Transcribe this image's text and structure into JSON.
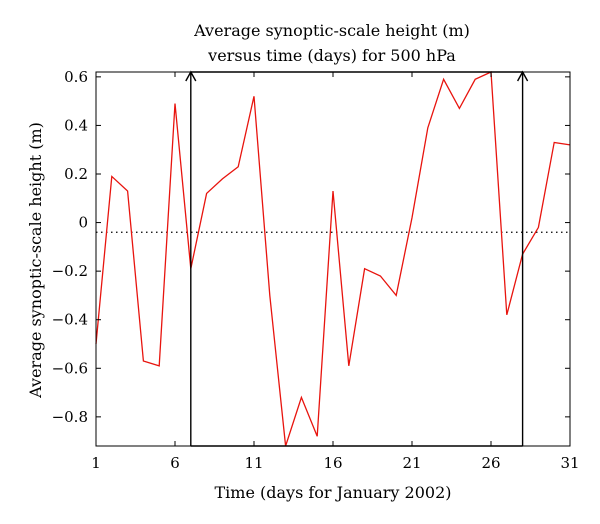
{
  "chart_data": {
    "type": "line",
    "title_lines": [
      "Average synoptic-scale height (m)",
      "versus time (days) for 500 hPa"
    ],
    "xlabel": "Time (days for January 2002)",
    "ylabel": "Average synoptic-scale height (m)",
    "xlim": [
      1,
      31
    ],
    "ylim": [
      -0.92,
      0.62
    ],
    "xticks": [
      1,
      6,
      11,
      16,
      21,
      26,
      31
    ],
    "yticks": [
      -0.8,
      -0.6,
      -0.4,
      -0.2,
      0,
      0.2,
      0.4,
      0.6
    ],
    "ytick_labels": [
      "−0.8",
      "−0.6",
      "−0.4",
      "−0.2",
      "0",
      "0.2",
      "0.4",
      "0.6"
    ],
    "grid": false,
    "series": [
      {
        "color": "#e8140e",
        "x": [
          1,
          2,
          3,
          4,
          5,
          6,
          7,
          8,
          9,
          10,
          11,
          12,
          13,
          14,
          15,
          16,
          17,
          18,
          19,
          20,
          21,
          22,
          23,
          24,
          25,
          26,
          27,
          28,
          29,
          30,
          31
        ],
        "y": [
          -0.5,
          0.19,
          0.13,
          -0.57,
          -0.59,
          0.49,
          -0.19,
          0.12,
          0.18,
          0.23,
          0.52,
          -0.3,
          -0.92,
          -0.72,
          -0.88,
          0.13,
          -0.59,
          -0.19,
          -0.22,
          -0.3,
          0.02,
          0.39,
          0.59,
          0.47,
          0.59,
          0.62,
          -0.38,
          -0.13,
          -0.02,
          0.33,
          0.32
        ]
      }
    ],
    "reference_line": {
      "y": -0.04,
      "style": "dotted",
      "color": "#000000"
    },
    "window": {
      "x_start": 7,
      "x_end": 28,
      "color": "#000000",
      "arrows_at_top": true
    }
  }
}
